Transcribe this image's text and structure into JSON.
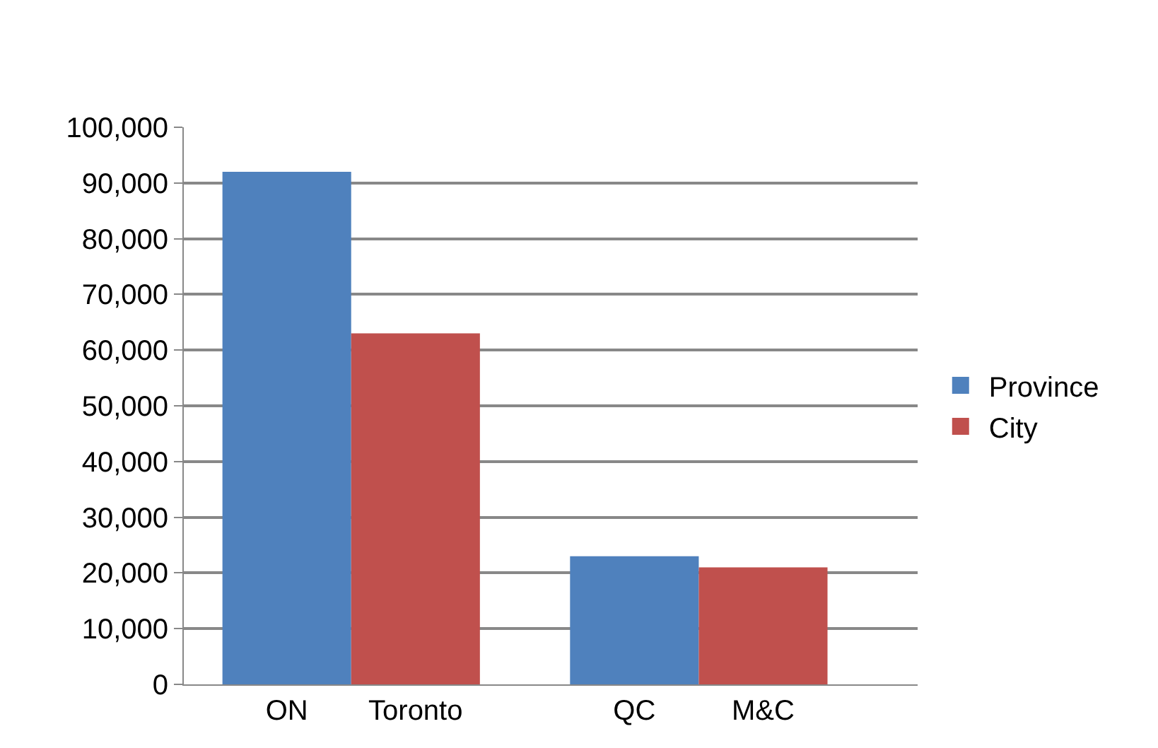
{
  "chart_data": {
    "type": "bar",
    "categories": [
      "ON",
      "Toronto",
      "QC",
      "M&C"
    ],
    "series": [
      {
        "name": "Province",
        "color": "#4f81bd",
        "values": [
          92000,
          null,
          23000,
          null
        ]
      },
      {
        "name": "City",
        "color": "#c0504d",
        "values": [
          null,
          63000,
          null,
          21000
        ]
      }
    ],
    "ylim": [
      0,
      100000
    ],
    "yticks": [
      0,
      {
        "value": 10000,
        "label": "10,000"
      },
      {
        "value": 20000,
        "label": "20,000"
      },
      {
        "value": 30000,
        "label": "30,000"
      },
      {
        "value": 40000,
        "label": "40,000"
      },
      {
        "value": 50000,
        "label": "50,000"
      },
      {
        "value": 60000,
        "label": "60,000"
      },
      {
        "value": 70000,
        "label": "70,000"
      },
      {
        "value": 80000,
        "label": "80,000"
      },
      {
        "value": 90000,
        "label": "90,000"
      },
      {
        "value": 100000,
        "label": "100,000"
      }
    ],
    "grid": "y",
    "legend": "right"
  }
}
